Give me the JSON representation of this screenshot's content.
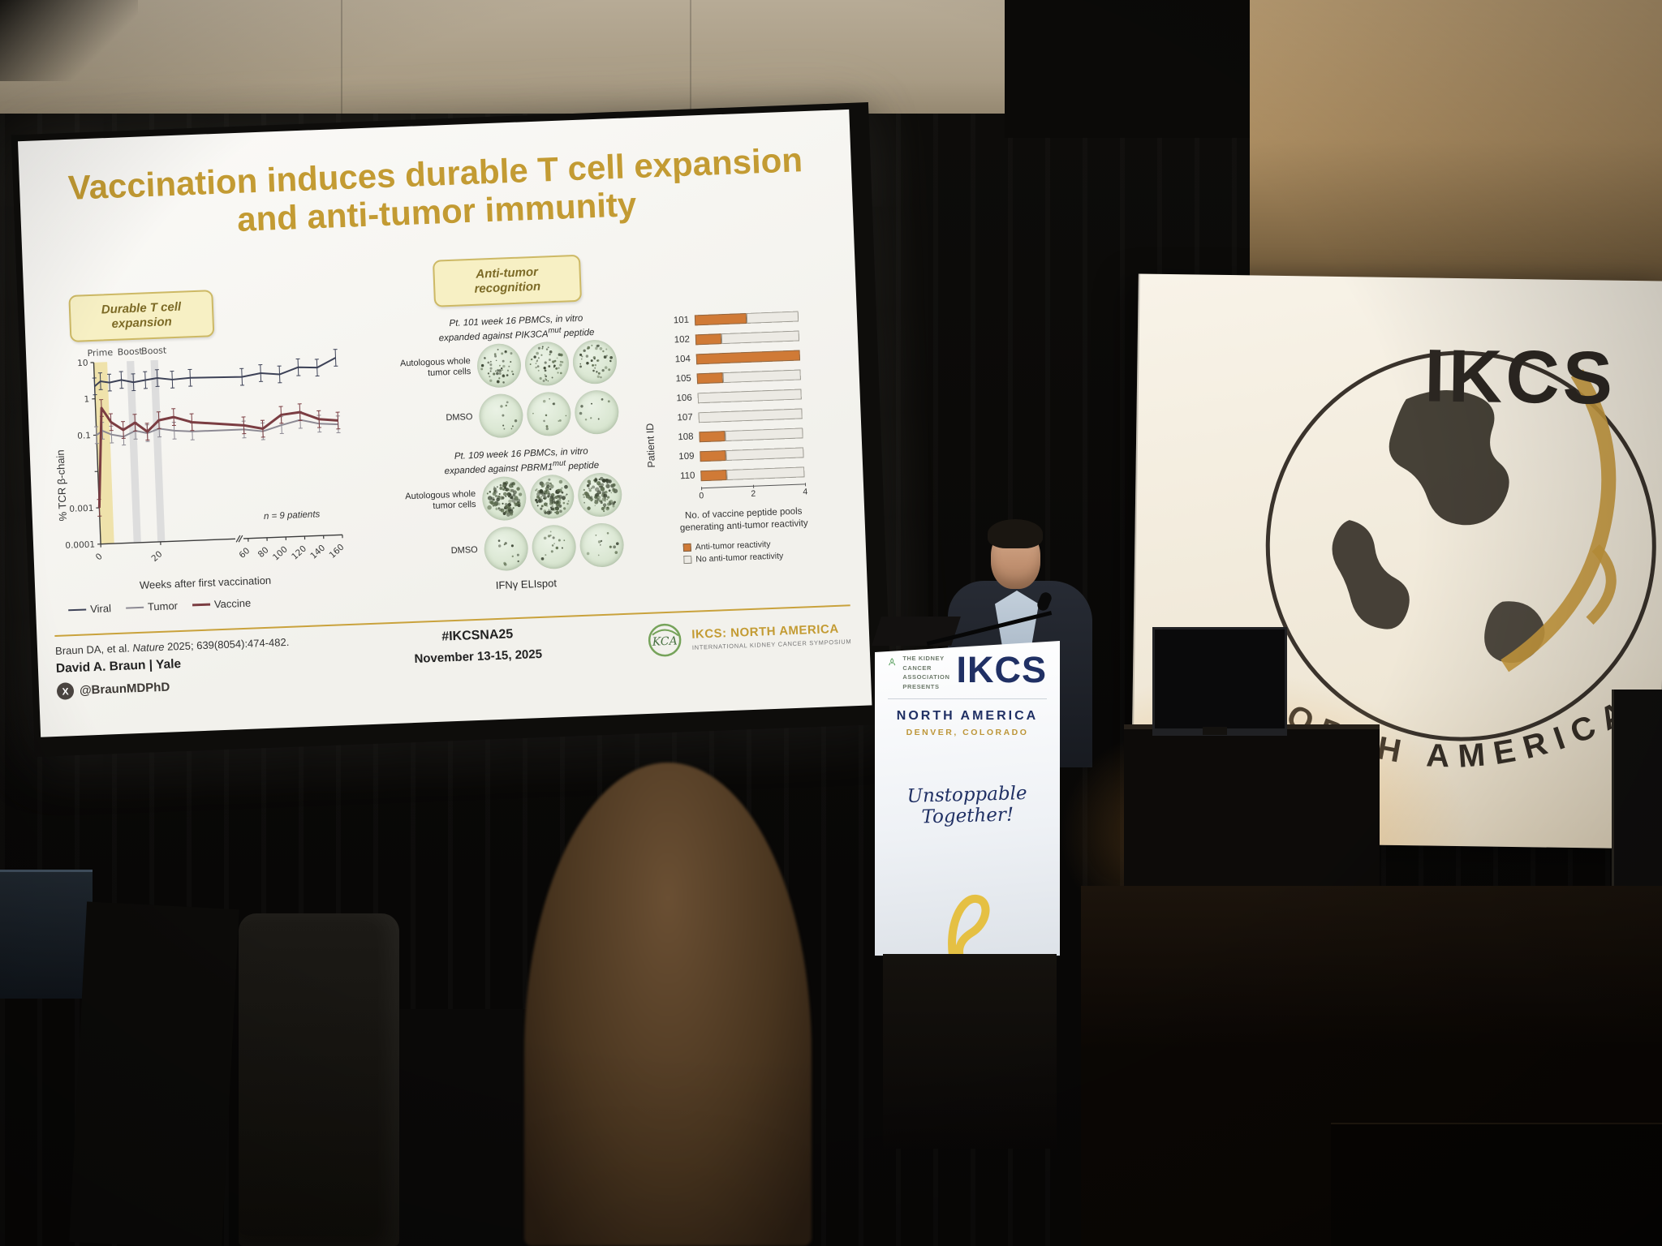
{
  "slide": {
    "title_line1": "Vaccination induces durable T cell expansion",
    "title_line2": "and anti-tumor immunity",
    "durable_label": "Durable T cell expansion",
    "antitumor_label": "Anti-tumor recognition",
    "line_ylabel": "% TCR β-chain",
    "line_xlabel": "Weeks after first vaccination",
    "line_note": "n = 9 patients",
    "elispot": {
      "p1_line1": "Pt. 101 week 16 PBMCs, in vitro",
      "p2_line1": "Pt. 109 week 16 PBMCs, in vitro",
      "expanded_against": "expanded against",
      "p1_gene": "PIK3CA",
      "p2_gene": "PBRM1",
      "sup": "mut",
      "peptide": "peptide",
      "row1_label": "Autologous whole tumor cells",
      "row2_label": "DMSO",
      "caption": "IFNγ ELIspot",
      "dots": {
        "p101": [
          [
            42,
            46,
            38
          ],
          [
            9,
            12,
            8
          ]
        ],
        "p109": [
          [
            98,
            110,
            90
          ],
          [
            10,
            14,
            11
          ]
        ]
      }
    },
    "footer": {
      "cite_pre": "Braun DA, et al. ",
      "cite_journal": "Nature",
      "cite_post": " 2025; 639(8054):474-482.",
      "name": "David A. Braun | Yale",
      "x_glyph": "X",
      "handle": "@BraunMDPhD",
      "hashtag": "#IKCSNA25",
      "dates": "November 13-15, 2025",
      "logo_text": "KCA",
      "org_line1": "IKCS: NORTH AMERICA",
      "org_line2": "INTERNATIONAL KIDNEY CANCER SYMPOSIUM"
    }
  },
  "chart_data": [
    {
      "type": "line",
      "title": "Durable T cell expansion",
      "ylabel": "% TCR β-chain",
      "xlabel": "Weeks after first vaccination",
      "yscale": "log",
      "ylim": [
        0.0001,
        10
      ],
      "ytick_labels": [
        "10",
        "1",
        "0.1",
        "0.001",
        "0.0001"
      ],
      "ytick_values": [
        10,
        1,
        0.1,
        0.001,
        0.0001
      ],
      "xticks_labeled": [
        0,
        20,
        60,
        80,
        100,
        120,
        140,
        160
      ],
      "axis_break_weeks": [
        45,
        55
      ],
      "note": "n = 9 patients",
      "phases": [
        {
          "label": "Prime",
          "week_start": 0,
          "week_end": 4.5,
          "color": "#efe2ab"
        },
        {
          "label": "Boost",
          "week_start": 11,
          "week_end": 13.5,
          "color": "#dddddd"
        },
        {
          "label": "Boost",
          "week_start": 19,
          "week_end": 21.5,
          "color": "#dddddd"
        }
      ],
      "err_factor": 1.7,
      "series": [
        {
          "name": "Viral",
          "color": "#3d4257",
          "width": 2,
          "x": [
            0,
            2,
            5,
            9,
            13,
            17,
            21,
            26,
            32,
            60,
            80,
            100,
            120,
            140,
            160
          ],
          "y": [
            2.2,
            3.0,
            2.7,
            3.1,
            2.6,
            2.9,
            3.2,
            2.8,
            3.0,
            2.8,
            3.4,
            3.0,
            4.5,
            4.2,
            7.5
          ]
        },
        {
          "name": "Tumor",
          "color": "#8d8a94",
          "width": 2,
          "x": [
            0,
            2,
            5,
            9,
            13,
            17,
            21,
            26,
            32,
            60,
            80,
            100,
            120,
            140,
            160
          ],
          "y": [
            0.1,
            0.13,
            0.1,
            0.085,
            0.12,
            0.1,
            0.13,
            0.11,
            0.1,
            0.1,
            0.085,
            0.12,
            0.16,
            0.12,
            0.11
          ]
        },
        {
          "name": "Vaccine",
          "color": "#7b3d42",
          "width": 3,
          "x": [
            0,
            2,
            5,
            9,
            13,
            17,
            21,
            26,
            32,
            60,
            80,
            100,
            120,
            140,
            160
          ],
          "y": [
            0.001,
            0.55,
            0.22,
            0.13,
            0.2,
            0.11,
            0.22,
            0.26,
            0.18,
            0.13,
            0.1,
            0.23,
            0.26,
            0.16,
            0.14
          ]
        }
      ]
    },
    {
      "type": "bar",
      "orientation": "horizontal",
      "ylabel": "Patient ID",
      "xlabel_line1": "No. of vaccine peptide pools",
      "xlabel_line2": "generating anti-tumor reactivity",
      "categories": [
        "101",
        "102",
        "104",
        "105",
        "106",
        "107",
        "108",
        "109",
        "110"
      ],
      "series": [
        {
          "name": "Anti-tumor reactivity",
          "color": "#d07a36",
          "values": [
            2,
            1,
            4,
            1,
            0,
            0,
            1,
            1,
            1
          ]
        },
        {
          "name": "No anti-tumor reactivity",
          "color": "#eceae4",
          "values": [
            2,
            3,
            0,
            3,
            4,
            4,
            3,
            3,
            3
          ]
        }
      ],
      "xlim": [
        0,
        4
      ],
      "xticks": [
        0,
        2,
        4
      ]
    }
  ],
  "scene": {
    "banner": {
      "brand": "IKCS",
      "arc_text": "NORTH AMERICA"
    },
    "podium": {
      "presents": "The Kidney Cancer Association Presents",
      "brand": "IKCS",
      "region": "NORTH AMERICA",
      "city": "DENVER, COLORADO",
      "tagline": "Unstoppable Together!"
    }
  },
  "colors": {
    "slide_gold": "#c39b33",
    "navy": "#203064",
    "reactive_orange": "#d07a36"
  }
}
